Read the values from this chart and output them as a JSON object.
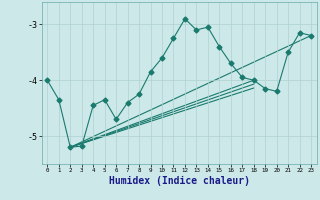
{
  "title": "",
  "xlabel": "Humidex (Indice chaleur)",
  "ylabel": "",
  "bg_color": "#cce8e8",
  "grid_color": "#b0d0d0",
  "line_color": "#1a7a6e",
  "xlim": [
    -0.5,
    23.5
  ],
  "ylim": [
    -5.5,
    -2.6
  ],
  "yticks": [
    -5,
    -4,
    -3
  ],
  "xticks": [
    0,
    1,
    2,
    3,
    4,
    5,
    6,
    7,
    8,
    9,
    10,
    11,
    12,
    13,
    14,
    15,
    16,
    17,
    18,
    19,
    20,
    21,
    22,
    23
  ],
  "main_x": [
    0,
    1,
    2,
    3,
    4,
    5,
    6,
    7,
    8,
    9,
    10,
    11,
    12,
    13,
    14,
    15,
    16,
    17,
    18,
    19,
    20,
    21,
    22,
    23
  ],
  "main_y": [
    -4.0,
    -4.35,
    -5.2,
    -5.18,
    -4.45,
    -4.35,
    -4.7,
    -4.4,
    -4.25,
    -3.85,
    -3.6,
    -3.25,
    -2.9,
    -3.1,
    -3.05,
    -3.4,
    -3.7,
    -3.95,
    -4.0,
    -4.15,
    -4.2,
    -3.5,
    -3.15,
    -3.2
  ],
  "line1_x": [
    2,
    18
  ],
  "line1_y": [
    -5.2,
    -4.0
  ],
  "line2_x": [
    2,
    18
  ],
  "line2_y": [
    -5.2,
    -4.07
  ],
  "line3_x": [
    2,
    18
  ],
  "line3_y": [
    -5.2,
    -4.14
  ],
  "line4_x": [
    2,
    23
  ],
  "line4_y": [
    -5.2,
    -3.2
  ],
  "marker": "D",
  "markersize": 2.5,
  "linewidth": 0.8,
  "xlabel_color": "#1a1a8a",
  "xlabel_fontsize": 7
}
